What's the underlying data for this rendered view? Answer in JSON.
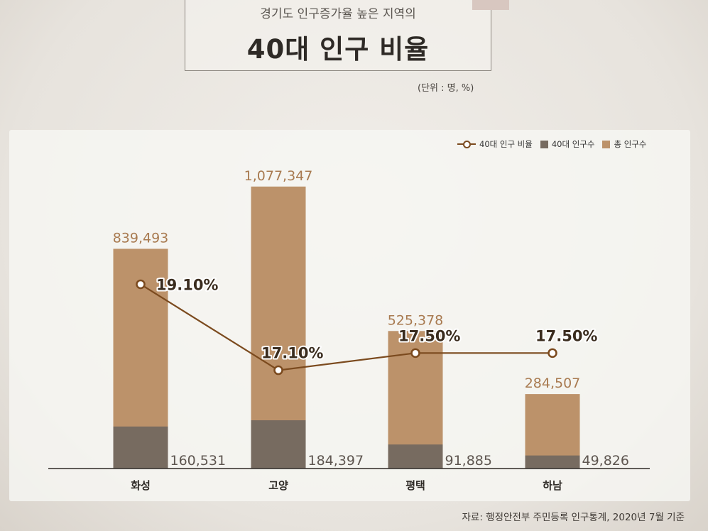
{
  "header": {
    "subtitle": "경기도 인구증가율 높은 지역의",
    "title": "40대 인구 비율",
    "unit": "(단위 : 명, %)"
  },
  "legend": {
    "ratio_label": "40대 인구 비율",
    "forties_label": "40대 인구수",
    "total_label": "총 인구수"
  },
  "colors": {
    "total_bar": "#bc926a",
    "forties_bar": "#776b60",
    "ratio_line": "#7b4a1e",
    "axis": "#2e2a26"
  },
  "source": "자료: 행정안전부 주민등록 인구통계, 2020년 7월 기준",
  "chart_data": {
    "type": "bar",
    "categories": [
      "화성",
      "고양",
      "평택",
      "하남"
    ],
    "series": [
      {
        "name": "총 인구수",
        "values": [
          839493,
          1077347,
          525378,
          284507
        ],
        "labels": [
          "839,493",
          "1,077,347",
          "525,378",
          "284,507"
        ]
      },
      {
        "name": "40대 인구수",
        "values": [
          160531,
          184397,
          91885,
          49826
        ],
        "labels": [
          "160,531",
          "184,397",
          "91,885",
          "49,826"
        ]
      },
      {
        "name": "40대 인구 비율",
        "values": [
          19.1,
          17.1,
          17.5,
          17.5
        ],
        "labels": [
          "19.10%",
          "17.10%",
          "17.50%",
          "17.50%"
        ]
      }
    ],
    "ylim": [
      0,
      1150000
    ],
    "ratio_ylim": [
      16.3,
      19.9
    ]
  }
}
